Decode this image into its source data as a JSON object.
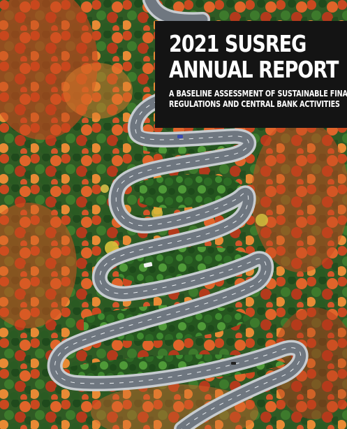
{
  "cover": {
    "title_line_1": "2021 SUSREG",
    "title_line_2": "ANNUAL REPORT",
    "subtitle_line_1": "A BASELINE ASSESSMENT OF SUSTAINABLE FINANCIAL",
    "subtitle_line_2": "REGULATIONS AND CENTRAL BANK ACTIVITIES",
    "title_panel_color": "#141414",
    "title_text_color": "#ffffff"
  }
}
